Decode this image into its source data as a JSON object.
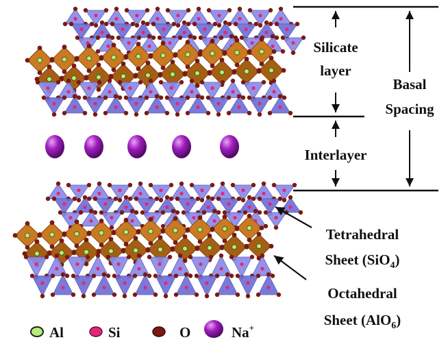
{
  "labels": {
    "silicate_line1": "Silicate",
    "silicate_line2": "layer",
    "basal_line1": "Basal",
    "basal_line2": "Spacing",
    "interlayer": "Interlayer",
    "tetra_line1": "Tetrahedral",
    "tetra_line2_prefix": "Sheet (SiO",
    "tetra_sub": "4",
    "tetra_suffix": ")",
    "octa_line1": "Octahedral",
    "octa_line2_prefix": "Sheet (AlO",
    "octa_sub": "6",
    "octa_suffix": ")"
  },
  "legend": [
    {
      "label": "Al",
      "symbol": "green-dot-icon"
    },
    {
      "label": "Si",
      "symbol": "pink-dot-icon"
    },
    {
      "label": "O",
      "symbol": "brown-dot-icon"
    },
    {
      "label": "Na",
      "sup": "+",
      "symbol": "purple-sphere-icon"
    }
  ],
  "colors": {
    "tetrahedra": "#8a8ae8",
    "tetrahedra_dark": "#6f6fd6",
    "octahedra": "#c97a22",
    "octahedra_dark": "#a55f15",
    "oxygen": "#7a1a12",
    "silicon": "#e0287a",
    "aluminum": "#b6ec7a",
    "sodium": "#9a1ab8"
  }
}
